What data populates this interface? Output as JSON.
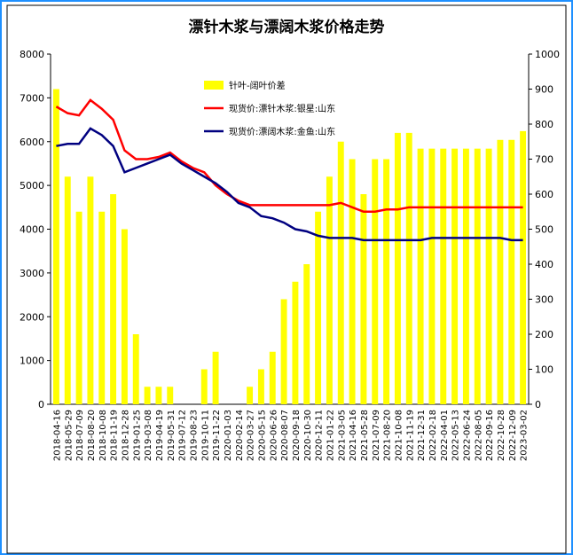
{
  "chart_data": {
    "type": "bar_line",
    "title": "漂针木浆与漂阔木浆价格走势",
    "categories": [
      "2018-04-16",
      "2018-05-29",
      "2018-07-09",
      "2018-08-20",
      "2018-10-08",
      "2018-11-19",
      "2018-12-28",
      "2019-01-25",
      "2019-03-08",
      "2019-04-19",
      "2019-05-31",
      "2019-07-12",
      "2019-08-23",
      "2019-10-11",
      "2019-11-22",
      "2020-01-03",
      "2020-02-14",
      "2020-03-27",
      "2020-05-15",
      "2020-06-26",
      "2020-08-07",
      "2020-09-18",
      "2020-10-30",
      "2020-12-11",
      "2021-01-22",
      "2021-03-05",
      "2021-04-16",
      "2021-05-28",
      "2021-07-09",
      "2021-08-20",
      "2021-10-08",
      "2021-11-19",
      "2021-12-31",
      "2022-02-18",
      "2022-04-01",
      "2022-05-13",
      "2022-06-24",
      "2022-08-05",
      "2022-09-16",
      "2022-10-28",
      "2022-12-09",
      "2023-03-02"
    ],
    "series": [
      {
        "name": "针叶-阔叶价差",
        "color": "#ffff00",
        "axis": "y2",
        "values": [
          900,
          650,
          550,
          650,
          550,
          600,
          500,
          200,
          50,
          50,
          50,
          0,
          0,
          100,
          150,
          0,
          0,
          50,
          100,
          150,
          300,
          350,
          400,
          550,
          650,
          750,
          700,
          600,
          700,
          700,
          775,
          775,
          730,
          730,
          730,
          730,
          730,
          730,
          730,
          755,
          755,
          780
        ]
      },
      {
        "name": "现货价:漂针木浆:银星:山东",
        "color": "#ff0000",
        "values": [
          6800,
          6650,
          6600,
          6950,
          6750,
          6500,
          5800,
          5600,
          5600,
          5650,
          5750,
          5550,
          5400,
          5300,
          5000,
          4800,
          4650,
          4550,
          4550,
          4550,
          4550,
          4550,
          4550,
          4550,
          4550,
          4600,
          4500,
          4400,
          4400,
          4450,
          4450,
          4500,
          4500,
          4500,
          4500,
          4500,
          4500,
          4500,
          4500,
          4500,
          4500,
          4500
        ]
      },
      {
        "name": "现货价:漂阔木浆:金鱼:山东",
        "color": "#000080",
        "values": [
          5900,
          5950,
          5950,
          6300,
          6150,
          5900,
          5300,
          5400,
          5500,
          5600,
          5700,
          5500,
          5350,
          5200,
          5050,
          4850,
          4600,
          4500,
          4300,
          4250,
          4150,
          4000,
          3950,
          3850,
          3800,
          3800,
          3800,
          3750,
          3750,
          3750,
          3750,
          3750,
          3750,
          3800,
          3800,
          3800,
          3800,
          3800,
          3800,
          3800,
          3750,
          3750
        ]
      }
    ],
    "ylim": [
      0,
      8000
    ],
    "yticks": [
      0,
      1000,
      2000,
      3000,
      4000,
      5000,
      6000,
      7000,
      8000
    ],
    "y2lim": [
      0,
      1000
    ],
    "y2ticks": [
      0,
      100,
      200,
      300,
      400,
      500,
      600,
      700,
      800,
      900,
      1000
    ]
  }
}
